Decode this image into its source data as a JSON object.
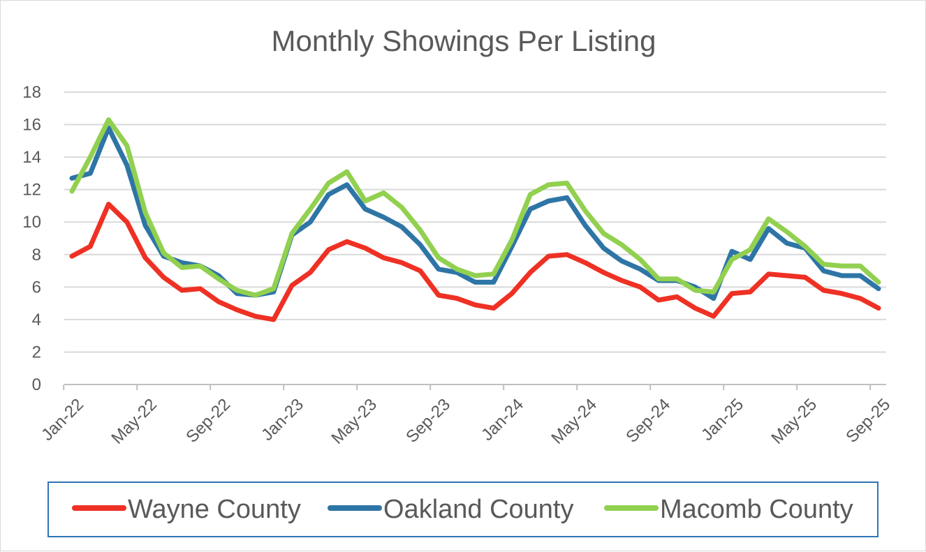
{
  "chart_data": {
    "type": "line",
    "title": "Monthly Showings Per Listing",
    "xlabel": "",
    "ylabel": "",
    "ylim": [
      0,
      18
    ],
    "y_ticks": [
      "0",
      "2",
      "4",
      "6",
      "8",
      "10",
      "12",
      "14",
      "16",
      "18"
    ],
    "grid": true,
    "legend_position": "bottom",
    "x": [
      "Jan-22",
      "Feb-22",
      "Mar-22",
      "Apr-22",
      "May-22",
      "Jun-22",
      "Jul-22",
      "Aug-22",
      "Sep-22",
      "Oct-22",
      "Nov-22",
      "Dec-22",
      "Jan-23",
      "Feb-23",
      "Mar-23",
      "Apr-23",
      "May-23",
      "Jun-23",
      "Jul-23",
      "Aug-23",
      "Sep-23",
      "Oct-23",
      "Nov-23",
      "Dec-23",
      "Jan-24",
      "Feb-24",
      "Mar-24",
      "Apr-24",
      "May-24",
      "Jun-24",
      "Jul-24",
      "Aug-24",
      "Sep-24",
      "Oct-24",
      "Nov-24",
      "Dec-24",
      "Jan-25",
      "Feb-25",
      "Mar-25",
      "Apr-25",
      "May-25",
      "Jun-25",
      "Jul-25",
      "Aug-25",
      "Sep-25"
    ],
    "x_tick_labels": [
      "Jan-22",
      "May-22",
      "Sep-22",
      "Jan-23",
      "May-23",
      "Sep-23",
      "Jan-24",
      "May-24",
      "Sep-24",
      "Jan-25",
      "May-25",
      "Sep-25"
    ],
    "x_tick_indices": [
      0,
      4,
      8,
      12,
      16,
      20,
      24,
      28,
      32,
      36,
      40,
      44
    ],
    "series": [
      {
        "name": "Wayne County",
        "color": "#ee3124",
        "values": [
          7.9,
          8.5,
          11.1,
          10.0,
          7.8,
          6.6,
          5.8,
          5.9,
          5.1,
          4.6,
          4.2,
          4.0,
          6.1,
          6.9,
          8.3,
          8.8,
          8.4,
          7.8,
          7.5,
          7.0,
          5.5,
          5.3,
          4.9,
          4.7,
          5.6,
          6.9,
          7.9,
          8.0,
          7.5,
          6.9,
          6.4,
          6.0,
          5.2,
          5.4,
          4.7,
          4.2,
          5.6,
          5.7,
          6.8,
          6.7,
          6.6,
          5.8,
          5.6,
          5.3,
          4.7
        ]
      },
      {
        "name": "Oakland County",
        "color": "#2e75a6",
        "values": [
          12.7,
          13.0,
          15.8,
          13.5,
          9.8,
          7.9,
          7.5,
          7.3,
          6.7,
          5.6,
          5.5,
          5.7,
          9.2,
          10.0,
          11.7,
          12.3,
          10.8,
          10.3,
          9.7,
          8.6,
          7.1,
          6.9,
          6.3,
          6.3,
          8.5,
          10.8,
          11.3,
          11.5,
          9.8,
          8.4,
          7.6,
          7.1,
          6.4,
          6.4,
          6.0,
          5.3,
          8.2,
          7.7,
          9.6,
          8.7,
          8.4,
          7.0,
          6.7,
          6.7,
          5.9
        ]
      },
      {
        "name": "Macomb County",
        "color": "#92d050",
        "values": [
          11.9,
          14.0,
          16.3,
          14.7,
          10.6,
          8.1,
          7.2,
          7.3,
          6.5,
          5.8,
          5.5,
          5.9,
          9.3,
          10.8,
          12.4,
          13.1,
          11.3,
          11.8,
          10.9,
          9.5,
          7.8,
          7.1,
          6.7,
          6.8,
          8.9,
          11.7,
          12.3,
          12.4,
          10.7,
          9.3,
          8.6,
          7.7,
          6.5,
          6.5,
          5.8,
          5.7,
          7.7,
          8.3,
          10.2,
          9.4,
          8.5,
          7.4,
          7.3,
          7.3,
          6.3
        ]
      }
    ]
  }
}
